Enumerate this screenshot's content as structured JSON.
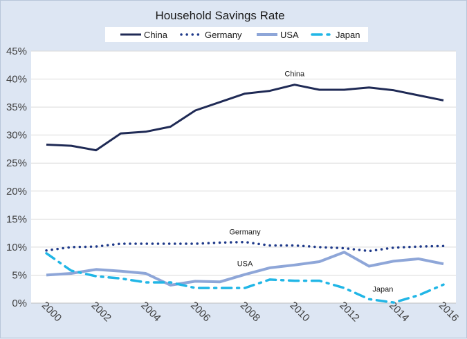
{
  "chart_data": {
    "type": "line",
    "title": "Household Savings Rate",
    "xlabel": "",
    "ylabel": "",
    "x": [
      2000,
      2001,
      2002,
      2003,
      2004,
      2005,
      2006,
      2007,
      2008,
      2009,
      2010,
      2011,
      2012,
      2013,
      2014,
      2015,
      2016
    ],
    "x_tick_labels": [
      "2000",
      "2002",
      "2004",
      "2006",
      "2008",
      "2010",
      "2012",
      "2014",
      "2016"
    ],
    "y_tick_labels": [
      "0%",
      "5%",
      "10%",
      "15%",
      "20%",
      "25%",
      "30%",
      "35%",
      "40%",
      "45%"
    ],
    "ylim": [
      0,
      45
    ],
    "legend_position": "top",
    "series": [
      {
        "name": "China",
        "color": "#1f2a55",
        "style": "solid",
        "values": [
          28.3,
          28.1,
          27.3,
          30.3,
          30.6,
          31.5,
          34.4,
          35.9,
          37.4,
          37.9,
          39.0,
          38.1,
          38.1,
          38.5,
          38.0,
          37.1,
          36.2
        ]
      },
      {
        "name": "Germany",
        "color": "#1f3a8a",
        "style": "dotted",
        "values": [
          9.4,
          10.0,
          10.1,
          10.6,
          10.6,
          10.6,
          10.6,
          10.8,
          10.9,
          10.3,
          10.3,
          10.0,
          9.8,
          9.3,
          9.9,
          10.1,
          10.2
        ]
      },
      {
        "name": "USA",
        "color": "#8ea6d8",
        "style": "solid-thick",
        "values": [
          5.0,
          5.3,
          6.0,
          5.7,
          5.3,
          3.2,
          3.9,
          3.8,
          5.1,
          6.3,
          6.8,
          7.4,
          9.1,
          6.6,
          7.5,
          7.9,
          7.0
        ]
      },
      {
        "name": "Japan",
        "color": "#21b6e6",
        "style": "dashdot",
        "values": [
          8.9,
          5.8,
          4.8,
          4.4,
          3.7,
          3.7,
          2.7,
          2.7,
          2.7,
          4.2,
          4.0,
          4.0,
          2.7,
          0.7,
          0.1,
          1.4,
          3.3
        ]
      }
    ],
    "annotations": [
      {
        "text": "China",
        "series": "China",
        "at_x": 2010
      },
      {
        "text": "Germany",
        "series": "Germany",
        "at_x": 2008
      },
      {
        "text": "USA",
        "series": "USA",
        "at_x": 2008
      },
      {
        "text": "Japan",
        "series": "Japan",
        "at_x": 2013
      }
    ]
  }
}
